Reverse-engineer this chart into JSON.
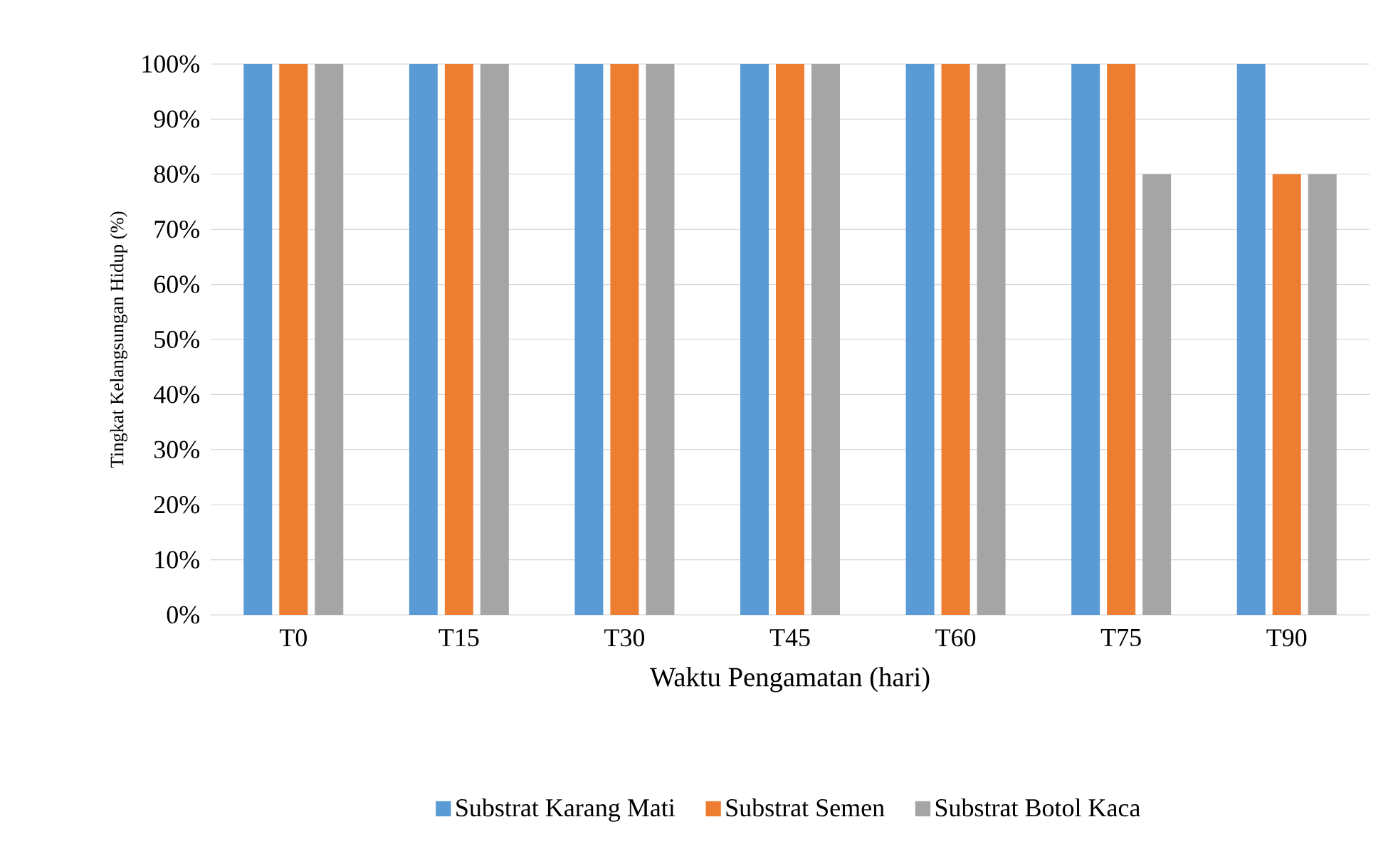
{
  "chart_data": {
    "type": "bar",
    "xlabel": "Waktu Pengamatan (hari)",
    "ylabel": "Tingkat Kelangsungan Hidup (%)",
    "categories": [
      "T0",
      "T15",
      "T30",
      "T45",
      "T60",
      "T75",
      "T90"
    ],
    "series": [
      {
        "name": "Substrat Karang Mati",
        "color": "#5b9bd5",
        "values": [
          100,
          100,
          100,
          100,
          100,
          100,
          100
        ]
      },
      {
        "name": "Substrat Semen",
        "color": "#ed7d31",
        "values": [
          100,
          100,
          100,
          100,
          100,
          100,
          80
        ]
      },
      {
        "name": "Substrat Botol Kaca",
        "color": "#a5a5a5",
        "values": [
          100,
          100,
          100,
          100,
          100,
          80,
          80
        ]
      }
    ],
    "ylim": [
      0,
      100
    ],
    "yticks": [
      {
        "value": 0,
        "label": "0%"
      },
      {
        "value": 10,
        "label": "10%"
      },
      {
        "value": 20,
        "label": "20%"
      },
      {
        "value": 30,
        "label": "30%"
      },
      {
        "value": 40,
        "label": "40%"
      },
      {
        "value": 50,
        "label": "50%"
      },
      {
        "value": 60,
        "label": "60%"
      },
      {
        "value": 70,
        "label": "70%"
      },
      {
        "value": 80,
        "label": "80%"
      },
      {
        "value": 90,
        "label": "90%"
      },
      {
        "value": 100,
        "label": "100%"
      }
    ],
    "grid": "y",
    "legend": "bottom"
  }
}
